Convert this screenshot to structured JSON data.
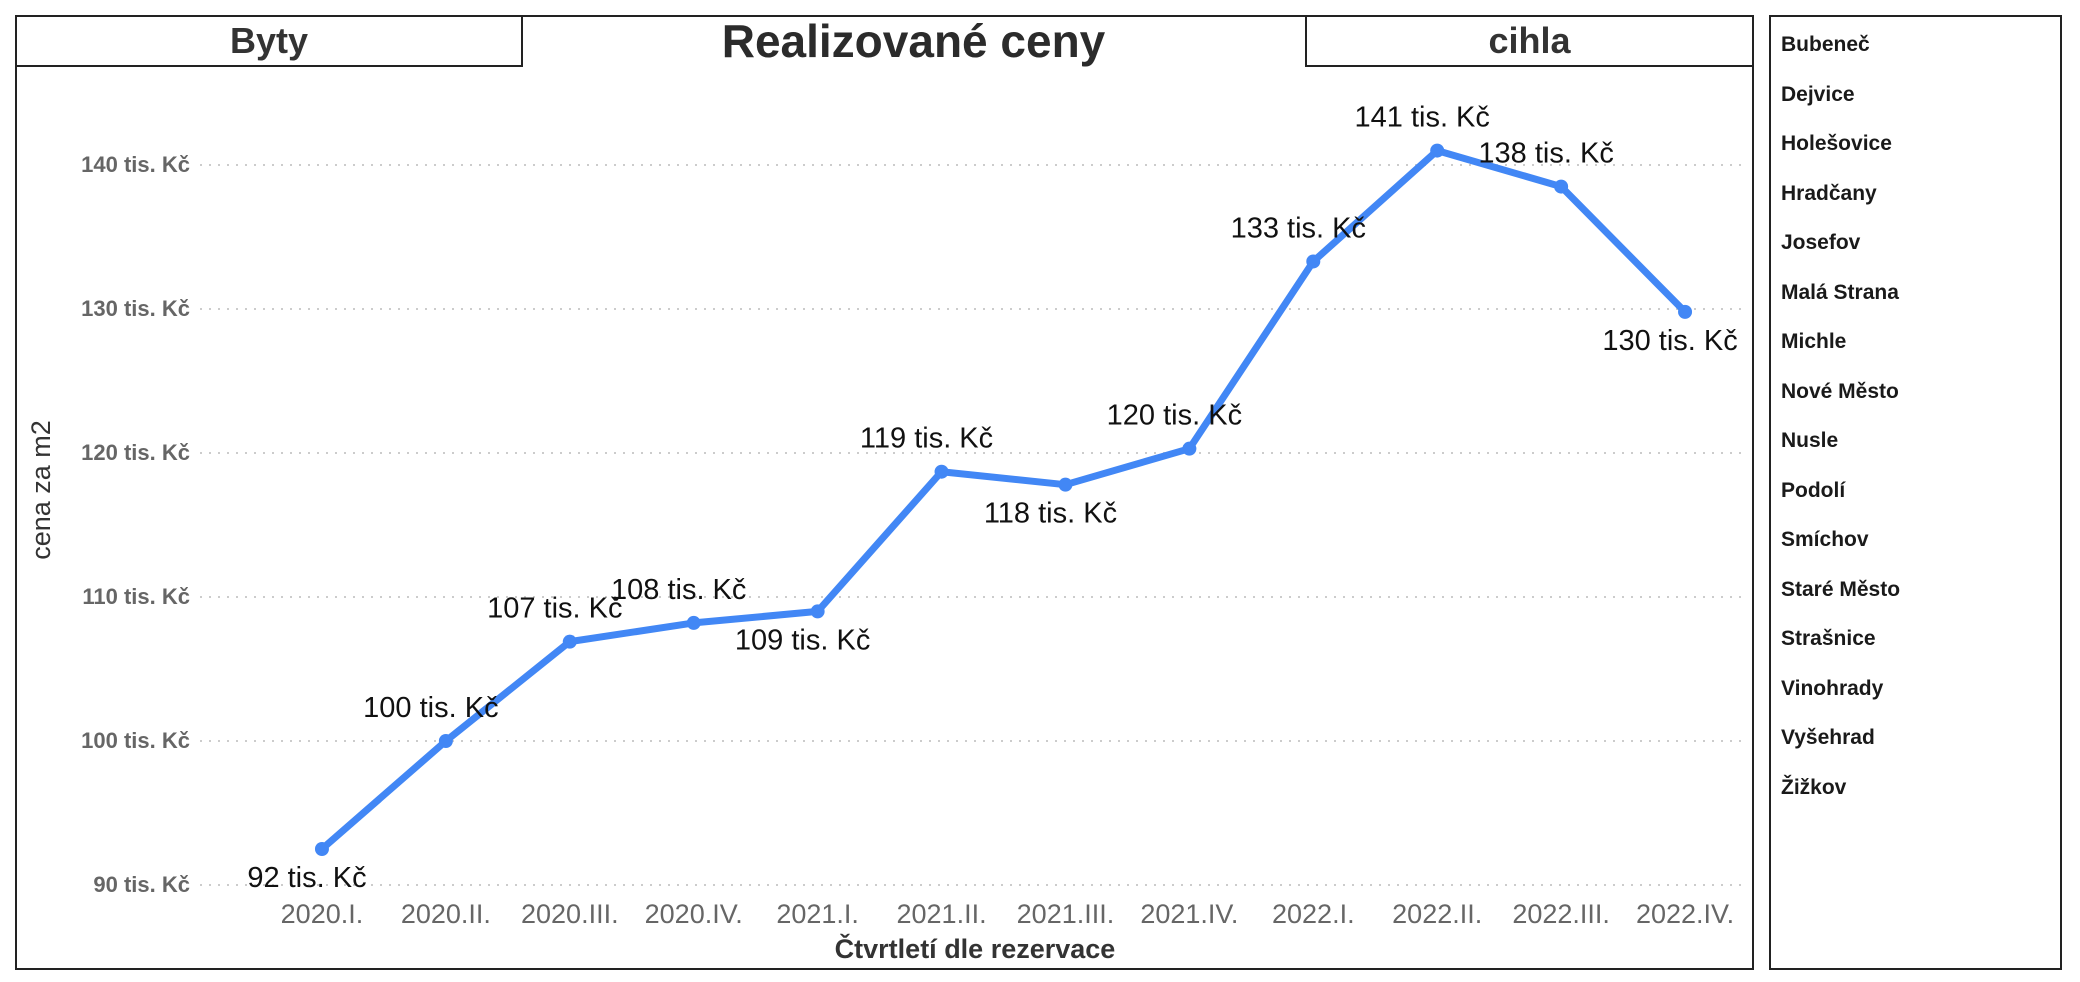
{
  "header": {
    "left_label": "Byty",
    "title": "Realizované ceny",
    "right_label": "cihla"
  },
  "sidebar": {
    "items": [
      {
        "label": "Bubeneč"
      },
      {
        "label": "Dejvice"
      },
      {
        "label": "Holešovice"
      },
      {
        "label": "Hradčany"
      },
      {
        "label": "Josefov"
      },
      {
        "label": "Malá Strana"
      },
      {
        "label": "Michle"
      },
      {
        "label": "Nové Město"
      },
      {
        "label": "Nusle"
      },
      {
        "label": "Podolí"
      },
      {
        "label": "Smíchov"
      },
      {
        "label": "Staré Město"
      },
      {
        "label": "Strašnice"
      },
      {
        "label": "Vinohrady"
      },
      {
        "label": "Vyšehrad"
      },
      {
        "label": "Žižkov"
      }
    ]
  },
  "colors": {
    "line": "#4287f5",
    "grid": "#cccccc",
    "tick_text": "#666666"
  },
  "chart_data": {
    "type": "line",
    "title": "Realizované ceny",
    "xlabel": "Čtvrtletí dle rezervace",
    "ylabel": "cena za m2",
    "categories": [
      "2020.I.",
      "2020.II.",
      "2020.III.",
      "2020.IV.",
      "2021.I.",
      "2021.II.",
      "2021.III.",
      "2021.IV.",
      "2022.I.",
      "2022.II.",
      "2022.III.",
      "2022.IV."
    ],
    "series": [
      {
        "values": [
          92.5,
          100,
          106.9,
          108.2,
          109,
          118.7,
          117.8,
          120.3,
          133.3,
          141,
          138.5,
          129.8
        ],
        "data_labels": [
          "92 tis. Kč",
          "100 tis. Kč",
          "107 tis. Kč",
          "108 tis. Kč",
          "109 tis. Kč",
          "119 tis. Kč",
          "118 tis. Kč",
          "120 tis. Kč",
          "133 tis. Kč",
          "141 tis. Kč",
          "138 tis. Kč",
          "130 tis. Kč"
        ],
        "label_positions": [
          "below",
          "above",
          "above",
          "above",
          "below",
          "above",
          "below",
          "above",
          "above",
          "above",
          "above",
          "below"
        ]
      }
    ],
    "yticks": [
      90,
      100,
      110,
      120,
      130,
      140
    ],
    "ytick_labels": [
      "90 tis. Kč",
      "100 tis. Kč",
      "110 tis. Kč",
      "120 tis. Kč",
      "130 tis. Kč",
      "140 tis. Kč"
    ],
    "ylim": [
      90,
      140
    ],
    "grid": "horizontal dotted",
    "legend": "none"
  }
}
